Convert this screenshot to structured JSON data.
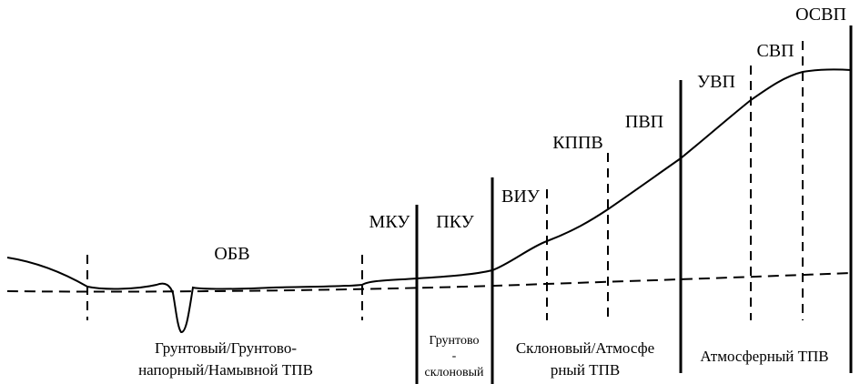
{
  "zones": {
    "obv": "ОБВ",
    "mku": "МКУ",
    "pku": "ПКУ",
    "viu": "ВИУ",
    "kppv": "КППВ",
    "pvp": "ПВП",
    "uvp": "УВП",
    "svp": "СВП",
    "osvp": "ОСВП"
  },
  "types": {
    "ground_line1": "Грунтовый/Грунтово-",
    "ground_line2": "напорный/Намывной ТПВ",
    "slope_ground_line1": "Грунтово",
    "slope_ground_line2": "-",
    "slope_ground_line3": "склоновый",
    "slope_atm_line1": "Склоновый/Атмосфе",
    "slope_atm_line2": "рный ТПВ",
    "atmospheric": "Атмосферный ТПВ"
  }
}
